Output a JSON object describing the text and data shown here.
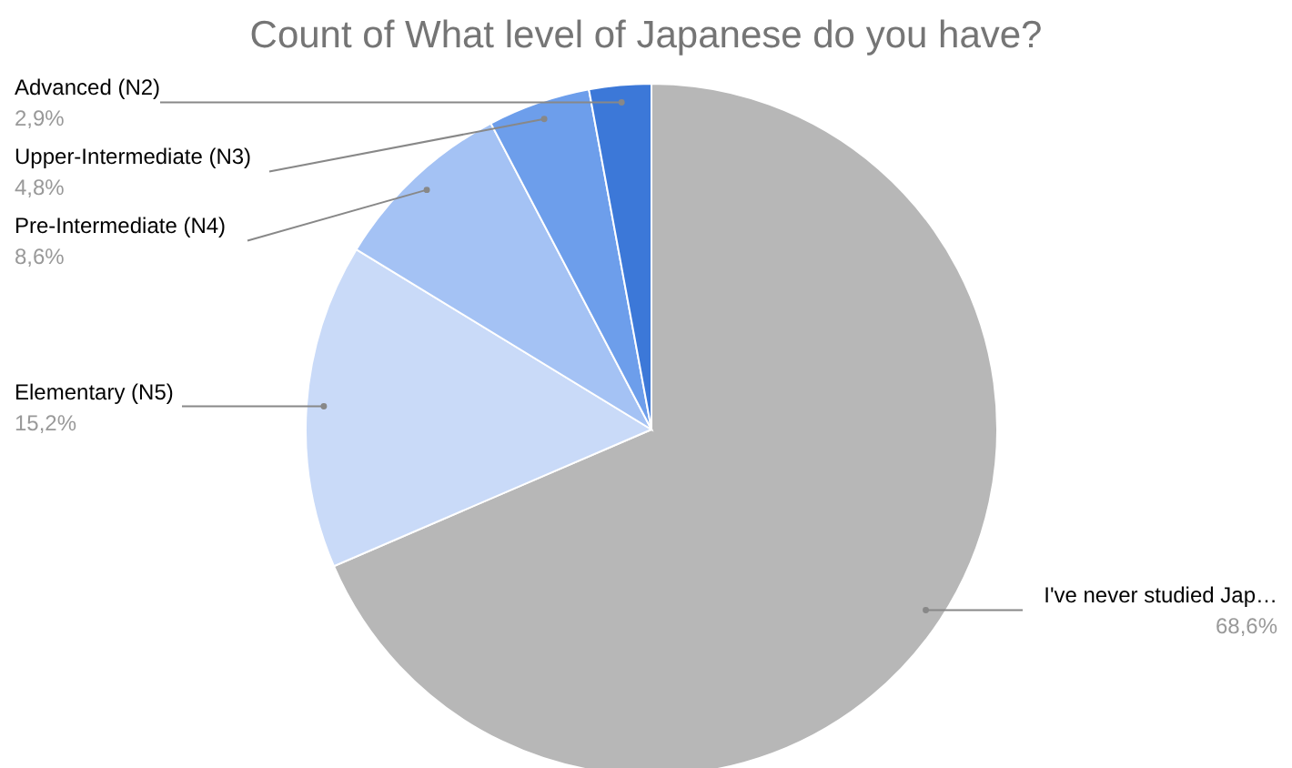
{
  "chart_data": {
    "type": "pie",
    "title": "Count of What level of Japanese do you have?",
    "categories": [
      "I've never studied Jap…",
      "Elementary (N5)",
      "Pre-Intermediate (N4)",
      "Upper-Intermediate (N3)",
      "Advanced (N2)"
    ],
    "values": [
      68.6,
      15.2,
      8.6,
      4.8,
      2.9
    ],
    "value_labels": [
      "68,6%",
      "15,2%",
      "8,6%",
      "4,8%",
      "2,9%"
    ],
    "colors": [
      "#b7b7b7",
      "#c9daf8",
      "#a4c2f4",
      "#6d9eeb",
      "#3c78d8"
    ]
  }
}
